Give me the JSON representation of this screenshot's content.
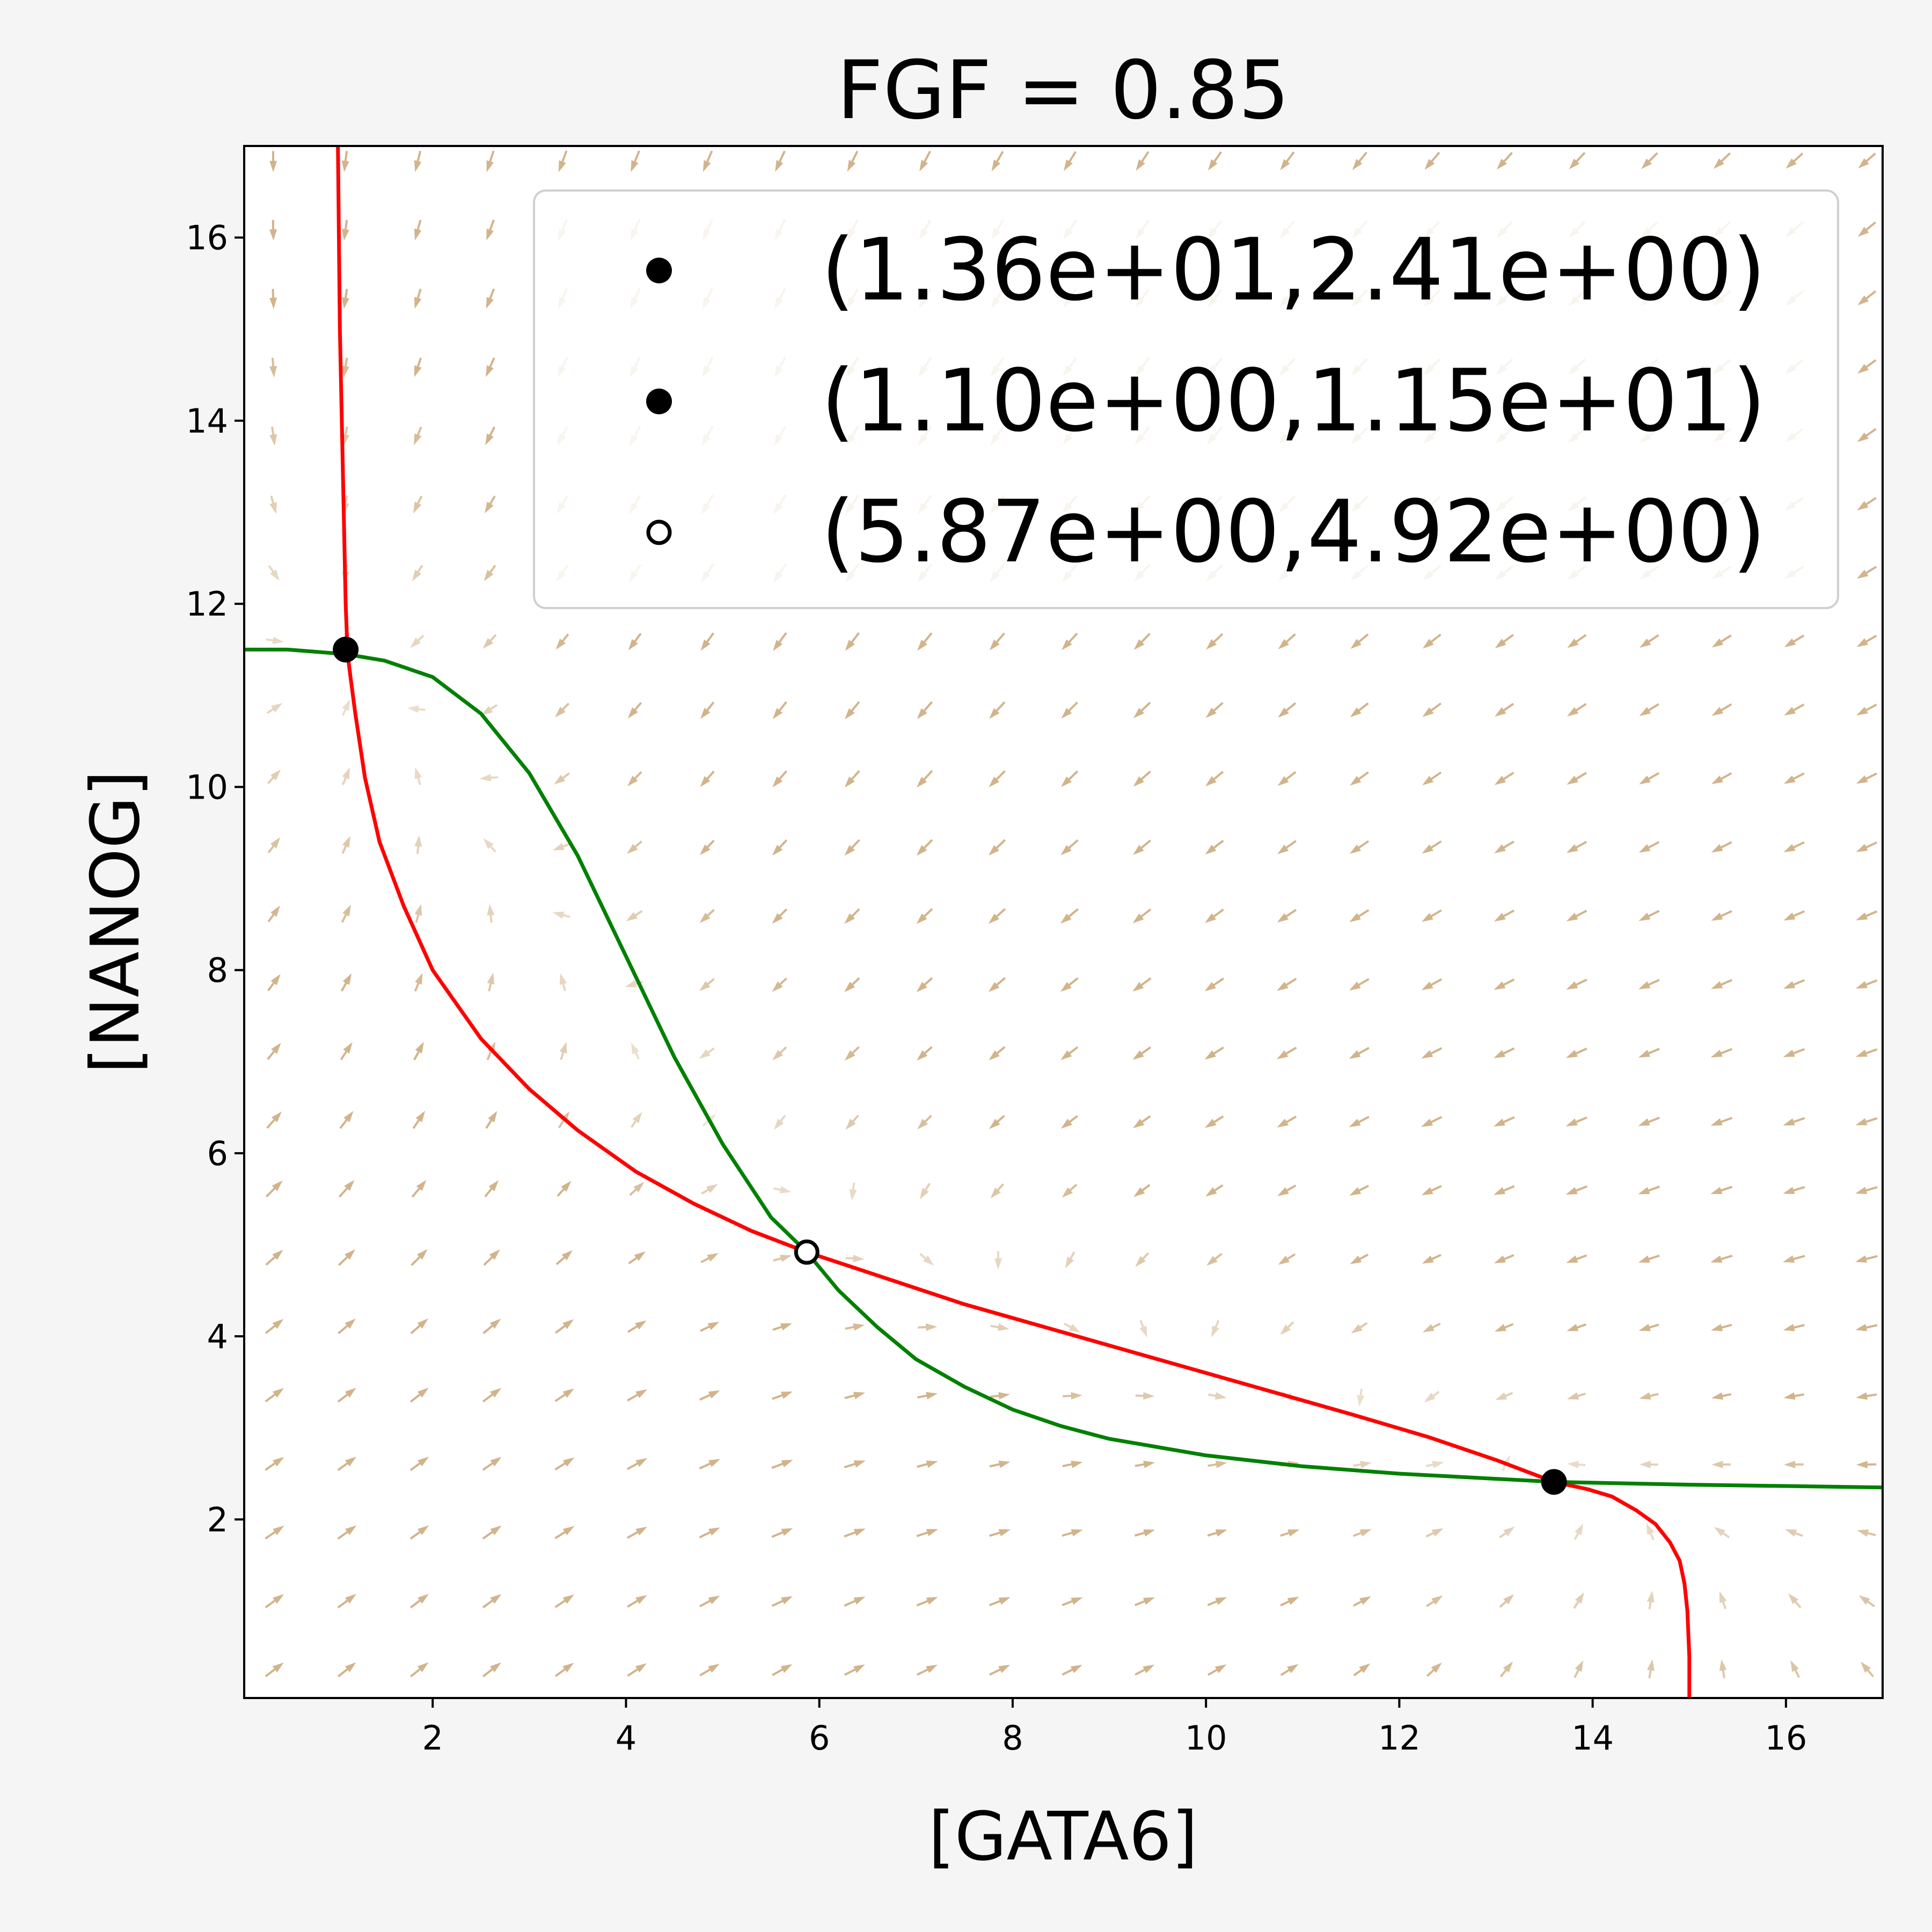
{
  "chart_data": {
    "type": "line",
    "title": "FGF = 0.85",
    "xlabel": "[GATA6]",
    "ylabel": "[NANOG]",
    "xlim": [
      0.05,
      17
    ],
    "ylim": [
      0.05,
      17
    ],
    "xticks": [
      2,
      4,
      6,
      8,
      10,
      12,
      14,
      16
    ],
    "yticks": [
      2,
      4,
      6,
      8,
      10,
      12,
      14,
      16
    ],
    "xtick_labels": [
      "2",
      "4",
      "6",
      "8",
      "10",
      "12",
      "14",
      "16"
    ],
    "ytick_labels": [
      "2",
      "4",
      "6",
      "8",
      "10",
      "12",
      "14",
      "16"
    ],
    "grid": false,
    "legend_position": "top-right",
    "colors": {
      "red_nullcline": "#ff0000",
      "green_nullcline": "#008000",
      "vector_field": "#d2b48c",
      "points": "#000000",
      "background": "#f5f5f5"
    },
    "series": [
      {
        "color": "#ff0000",
        "x": [
          15.0,
          15.0,
          14.98,
          14.95,
          14.9,
          14.8,
          14.65,
          14.45,
          14.2,
          13.95,
          13.6,
          13.0,
          12.3,
          11.5,
          10.5,
          9.5,
          8.5,
          7.5,
          6.5,
          5.87,
          5.3,
          4.7,
          4.1,
          3.5,
          3.0,
          2.5,
          2.0,
          1.7,
          1.45,
          1.3,
          1.2,
          1.15,
          1.12,
          1.1,
          1.08,
          1.06,
          1.04,
          1.03,
          1.02
        ],
        "y": [
          0.05,
          0.5,
          1.0,
          1.3,
          1.55,
          1.75,
          1.95,
          2.1,
          2.25,
          2.33,
          2.41,
          2.65,
          2.9,
          3.15,
          3.45,
          3.75,
          4.05,
          4.35,
          4.7,
          4.92,
          5.15,
          5.45,
          5.8,
          6.25,
          6.7,
          7.25,
          8.0,
          8.7,
          9.4,
          10.1,
          10.8,
          11.2,
          11.45,
          12.0,
          13.0,
          14.0,
          15.0,
          16.0,
          17.0
        ]
      },
      {
        "color": "#008000",
        "x": [
          0.05,
          0.5,
          1.1,
          1.5,
          2.0,
          2.5,
          3.0,
          3.5,
          4.0,
          4.5,
          5.0,
          5.5,
          5.87,
          6.2,
          6.6,
          7.0,
          7.5,
          8.0,
          8.5,
          9.0,
          10.0,
          11.0,
          12.0,
          13.6,
          15.0,
          17.0
        ],
        "y": [
          11.5,
          11.5,
          11.45,
          11.38,
          11.2,
          10.8,
          10.15,
          9.25,
          8.15,
          7.05,
          6.1,
          5.3,
          4.92,
          4.5,
          4.1,
          3.75,
          3.45,
          3.2,
          3.02,
          2.88,
          2.7,
          2.58,
          2.5,
          2.41,
          2.38,
          2.35
        ]
      }
    ],
    "points": [
      {
        "x": 13.6,
        "y": 2.41,
        "style": "filled",
        "label": "(1.36e+01,2.41e+00)"
      },
      {
        "x": 1.1,
        "y": 11.5,
        "style": "filled",
        "label": "(1.10e+00,1.15e+01)"
      },
      {
        "x": 5.87,
        "y": 4.92,
        "style": "hollow",
        "label": "(5.87e+00,4.92e+00)"
      }
    ],
    "vector_field": {
      "grid_start": 0.35,
      "grid_step": 0.75,
      "grid_count": 23
    }
  }
}
